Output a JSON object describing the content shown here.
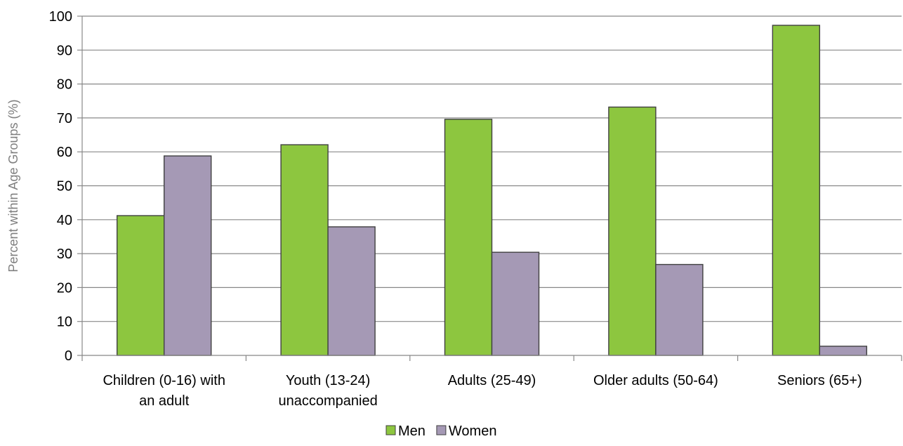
{
  "chart_data": {
    "type": "bar",
    "categories": [
      [
        "Children (0-16) with",
        "an adult"
      ],
      [
        "Youth (13-24)",
        "unaccompanied"
      ],
      [
        "Adults (25-49)"
      ],
      [
        "Older adults (50-64)"
      ],
      [
        "Seniors (65+)"
      ]
    ],
    "series": [
      {
        "name": "Men",
        "color": "#8dc63f",
        "values": [
          41.2,
          62.1,
          69.6,
          73.2,
          97.3
        ]
      },
      {
        "name": "Women",
        "color": "#a599b5",
        "values": [
          58.8,
          37.9,
          30.4,
          26.8,
          2.7
        ]
      }
    ],
    "ylabel": "Percent within Age Groups (%)",
    "ylim": [
      0,
      100
    ],
    "yticks": [
      0,
      10,
      20,
      30,
      40,
      50,
      60,
      70,
      80,
      90,
      100
    ],
    "grid": true,
    "legend": "bottom-center"
  }
}
